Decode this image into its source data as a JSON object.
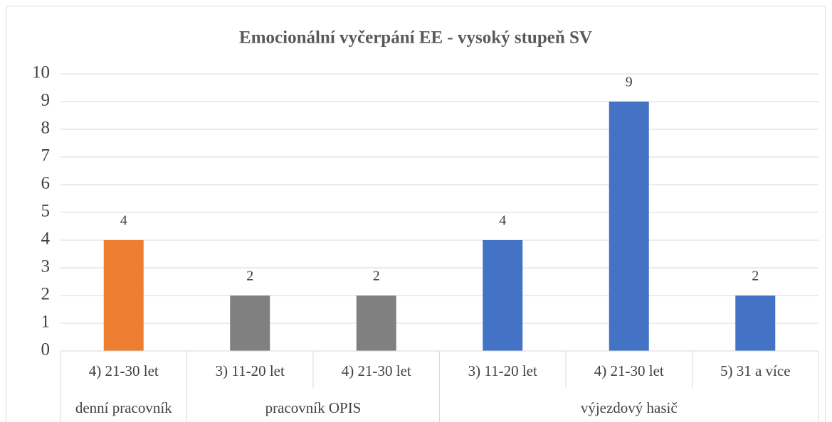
{
  "chart_data": {
    "type": "bar",
    "title": "Emocionální vyčerpání EE - vysoký stupeň SV",
    "groups": [
      {
        "name": "denní pracovník",
        "categories": [
          "4) 21-30 let"
        ],
        "values": [
          4
        ],
        "color": "#ed7d31"
      },
      {
        "name": "pracovník OPIS",
        "categories": [
          "3) 11-20 let",
          "4) 21-30 let"
        ],
        "values": [
          2,
          2
        ],
        "color": "#808080"
      },
      {
        "name": "výjezdový hasič",
        "categories": [
          "3) 11-20 let",
          "4) 21-30 let",
          "5) 31 a více"
        ],
        "values": [
          4,
          9,
          2
        ],
        "color": "#4472c4"
      }
    ],
    "ylim": [
      0,
      10
    ],
    "yticks": [
      0,
      1,
      2,
      3,
      4,
      5,
      6,
      7,
      8,
      9,
      10
    ],
    "grid": true,
    "data_labels": true
  }
}
